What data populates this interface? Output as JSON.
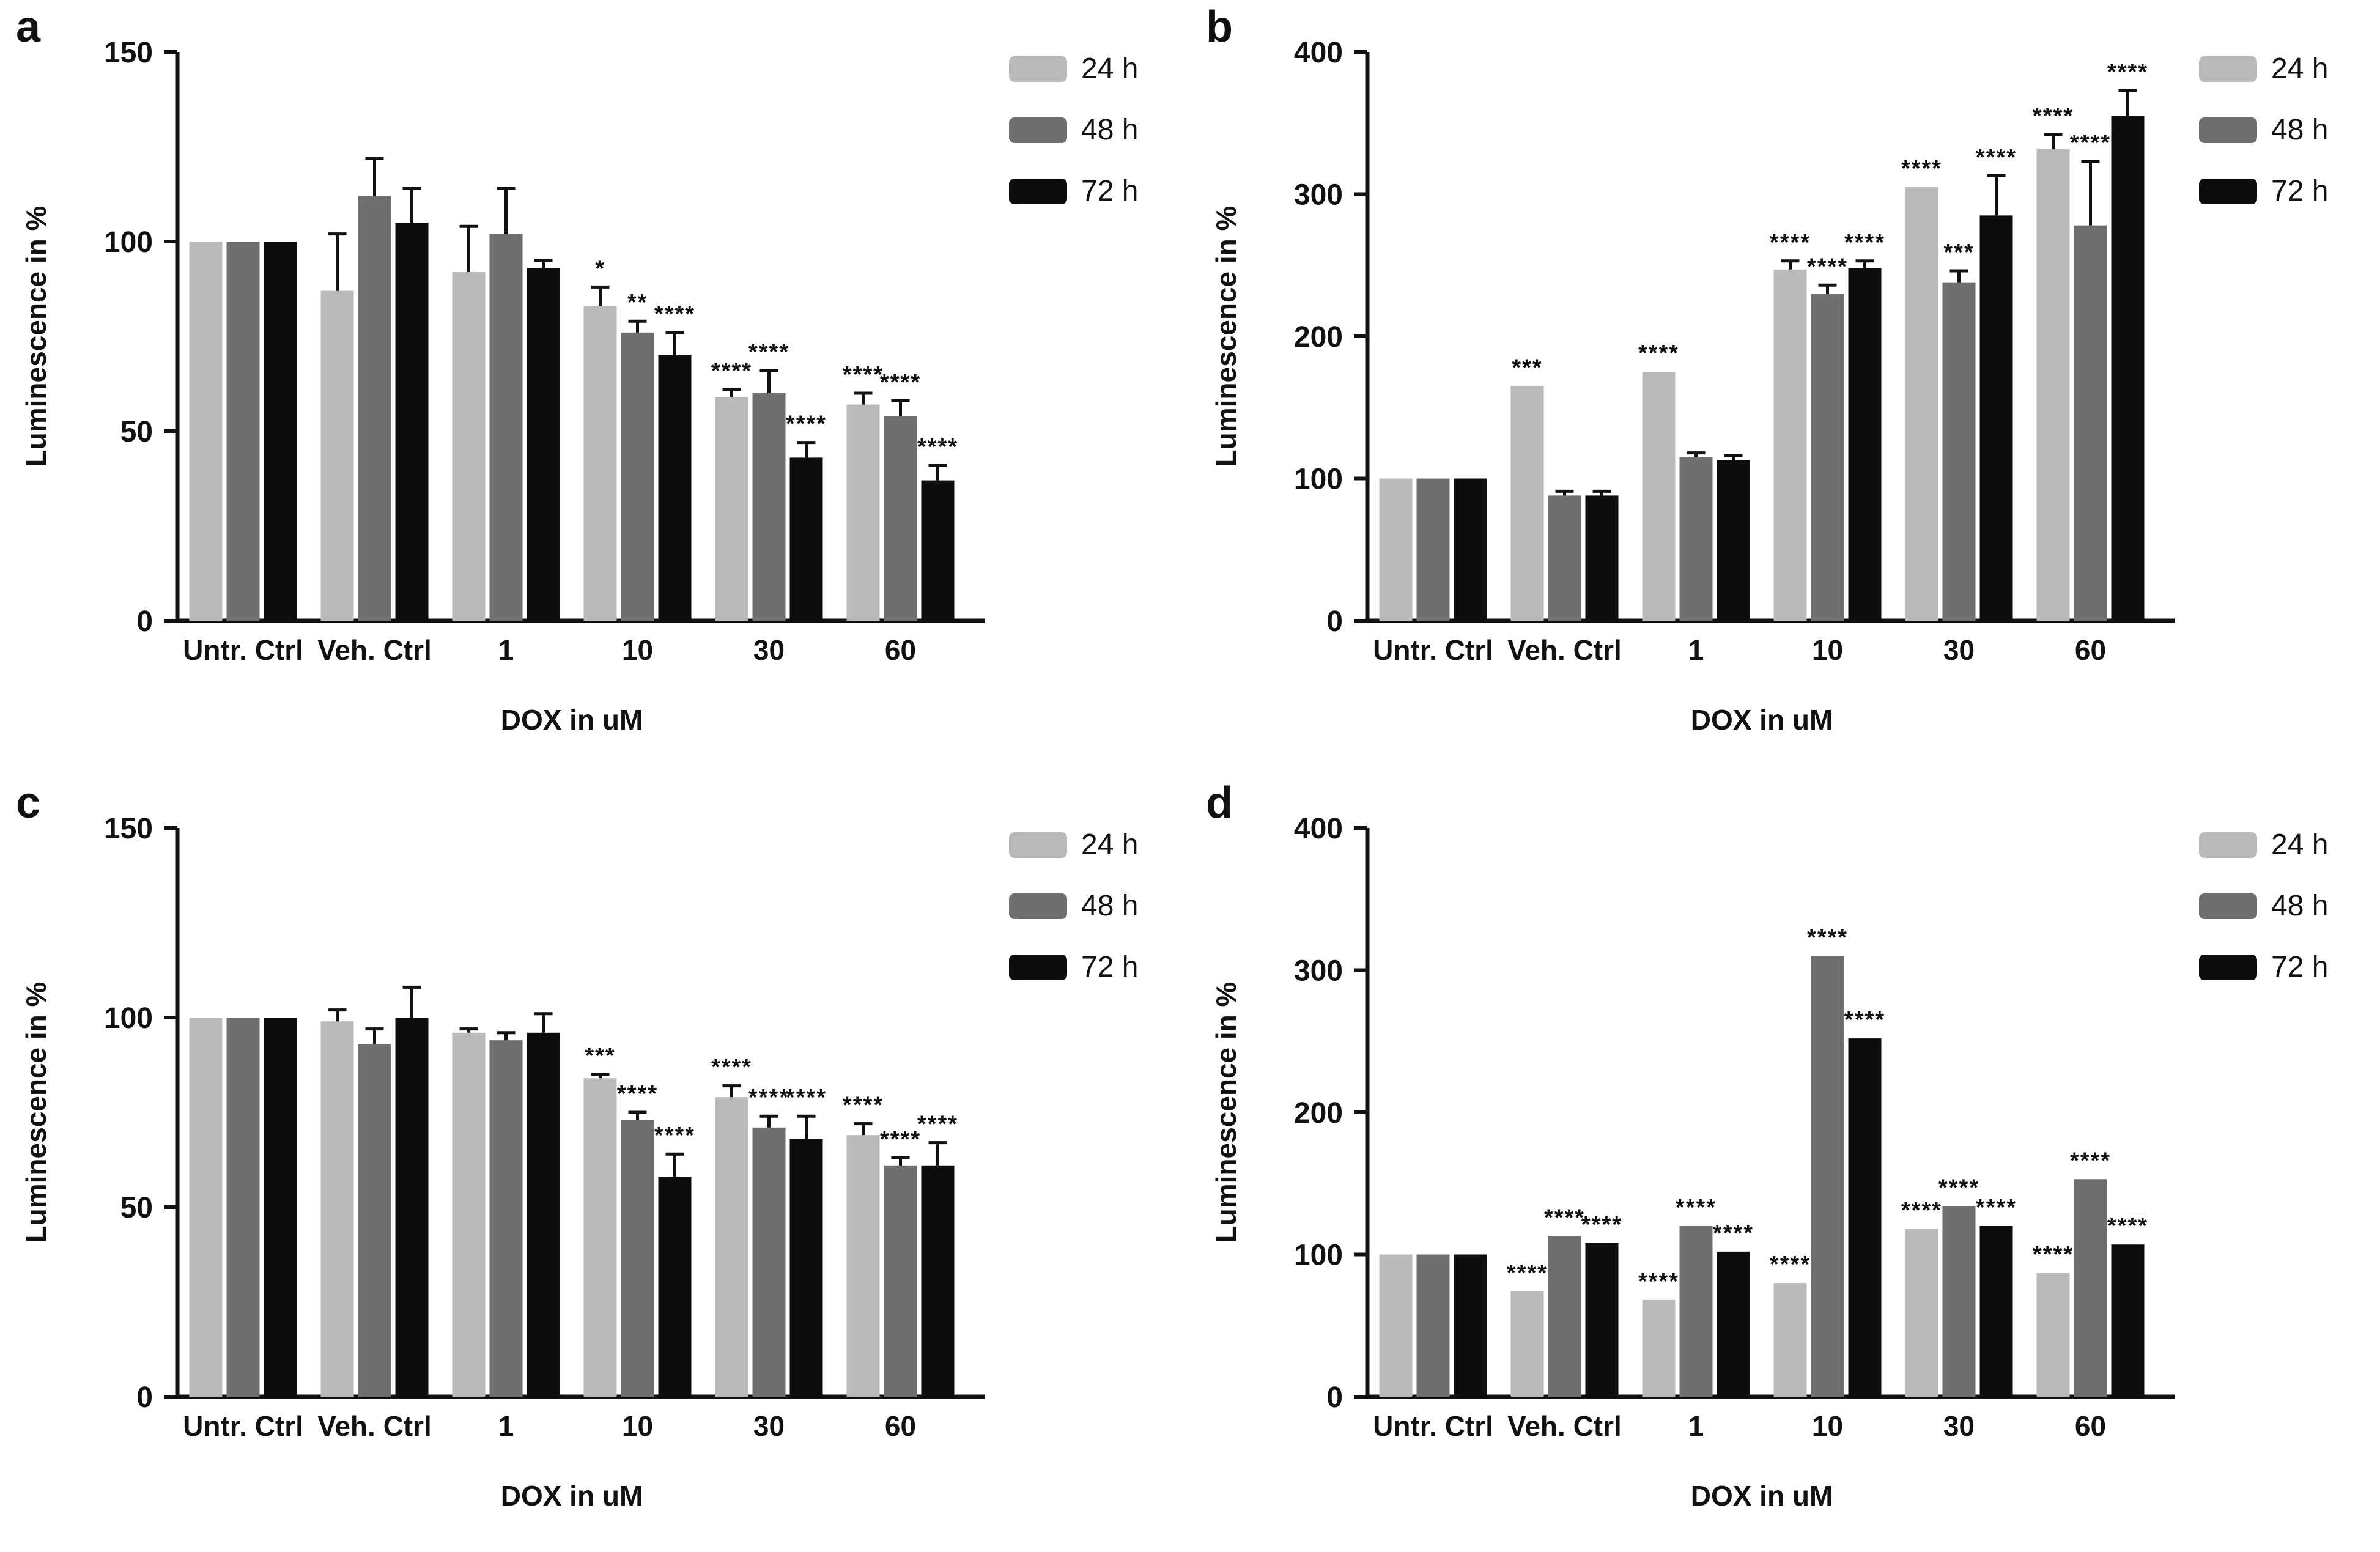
{
  "figure": {
    "background": "#ffffff",
    "axis_color": "#111111",
    "error_bar_color": "#111111",
    "significance_color": "#111111",
    "bar_colors": {
      "24 h": "#b9b9b9",
      "48 h": "#6f6f6f",
      "72 h": "#0d0d0d"
    }
  },
  "chart_data": [
    {
      "panel": "a",
      "type": "bar",
      "title": "",
      "xlabel": "DOX in uM",
      "ylabel": "Luminescence in %",
      "ylim": [
        0,
        150
      ],
      "yticks": [
        0,
        50,
        100,
        150
      ],
      "grid": false,
      "legend_position": "top-right",
      "categories": [
        "Untr. Ctrl",
        "Veh. Ctrl",
        "1",
        "10",
        "30",
        "60"
      ],
      "legend": [
        "24 h",
        "48 h",
        "72 h"
      ],
      "series": [
        {
          "name": "24 h",
          "color": "#b9b9b9",
          "values": [
            100,
            87,
            92,
            83,
            59,
            57
          ],
          "errors": [
            0,
            15,
            12,
            5,
            2,
            3
          ],
          "sig": [
            "",
            "",
            "",
            "*",
            "****",
            "****"
          ]
        },
        {
          "name": "48 h",
          "color": "#6f6f6f",
          "values": [
            100,
            112,
            102,
            76,
            60,
            54
          ],
          "errors": [
            0,
            10,
            12,
            3,
            6,
            4
          ],
          "sig": [
            "",
            "",
            "",
            "**",
            "****",
            "****"
          ]
        },
        {
          "name": "72 h",
          "color": "#0d0d0d",
          "values": [
            100,
            105,
            93,
            70,
            43,
            37
          ],
          "errors": [
            0,
            9,
            2,
            6,
            4,
            4
          ],
          "sig": [
            "",
            "",
            "",
            "****",
            "****",
            "****"
          ]
        }
      ]
    },
    {
      "panel": "b",
      "type": "bar",
      "title": "",
      "xlabel": "DOX in uM",
      "ylabel": "Luminescence in %",
      "ylim": [
        0,
        400
      ],
      "yticks": [
        0,
        100,
        200,
        300,
        400
      ],
      "grid": false,
      "legend_position": "top-right",
      "categories": [
        "Untr. Ctrl",
        "Veh. Ctrl",
        "1",
        "10",
        "30",
        "60"
      ],
      "legend": [
        "24 h",
        "48 h",
        "72 h"
      ],
      "series": [
        {
          "name": "24 h",
          "color": "#b9b9b9",
          "values": [
            100,
            165,
            175,
            247,
            305,
            332
          ],
          "errors": [
            0,
            0,
            0,
            6,
            0,
            10
          ],
          "sig": [
            "",
            "***",
            "****",
            "****",
            "****",
            "****"
          ]
        },
        {
          "name": "48 h",
          "color": "#6f6f6f",
          "values": [
            100,
            88,
            115,
            230,
            238,
            278
          ],
          "errors": [
            0,
            3,
            3,
            6,
            8,
            45
          ],
          "sig": [
            "",
            "",
            "",
            "****",
            "***",
            "****"
          ]
        },
        {
          "name": "72 h",
          "color": "#0d0d0d",
          "values": [
            100,
            88,
            113,
            248,
            285,
            355
          ],
          "errors": [
            0,
            3,
            3,
            5,
            28,
            18
          ],
          "sig": [
            "",
            "",
            "",
            "****",
            "****",
            "****"
          ]
        }
      ]
    },
    {
      "panel": "c",
      "type": "bar",
      "title": "",
      "xlabel": "DOX in uM",
      "ylabel": "Luminescence in %",
      "ylim": [
        0,
        150
      ],
      "yticks": [
        0,
        50,
        100,
        150
      ],
      "grid": false,
      "legend_position": "top-right",
      "categories": [
        "Untr. Ctrl",
        "Veh. Ctrl",
        "1",
        "10",
        "30",
        "60"
      ],
      "legend": [
        "24 h",
        "48 h",
        "72 h"
      ],
      "series": [
        {
          "name": "24 h",
          "color": "#b9b9b9",
          "values": [
            100,
            99,
            96,
            84,
            79,
            69
          ],
          "errors": [
            0,
            3,
            1,
            1,
            3,
            3
          ],
          "sig": [
            "",
            "",
            "",
            "***",
            "****",
            "****"
          ]
        },
        {
          "name": "48 h",
          "color": "#6f6f6f",
          "values": [
            100,
            93,
            94,
            73,
            71,
            61
          ],
          "errors": [
            0,
            4,
            2,
            2,
            3,
            2
          ],
          "sig": [
            "",
            "",
            "",
            "****",
            "****",
            "****"
          ]
        },
        {
          "name": "72 h",
          "color": "#0d0d0d",
          "values": [
            100,
            100,
            96,
            58,
            68,
            61
          ],
          "errors": [
            0,
            8,
            5,
            6,
            6,
            6
          ],
          "sig": [
            "",
            "",
            "",
            "****",
            "****",
            "****"
          ]
        }
      ]
    },
    {
      "panel": "d",
      "type": "bar",
      "title": "",
      "xlabel": "DOX in uM",
      "ylabel": "Luminescence in %",
      "ylim": [
        0,
        400
      ],
      "yticks": [
        0,
        100,
        200,
        300,
        400
      ],
      "grid": false,
      "legend_position": "top-right",
      "categories": [
        "Untr. Ctrl",
        "Veh. Ctrl",
        "1",
        "10",
        "30",
        "60"
      ],
      "legend": [
        "24 h",
        "48 h",
        "72 h"
      ],
      "series": [
        {
          "name": "24 h",
          "color": "#b9b9b9",
          "values": [
            100,
            74,
            68,
            80,
            118,
            87
          ],
          "errors": [
            0,
            0,
            0,
            0,
            0,
            0
          ],
          "sig": [
            "",
            "****",
            "****",
            "****",
            "****",
            "****"
          ]
        },
        {
          "name": "48 h",
          "color": "#6f6f6f",
          "values": [
            100,
            113,
            120,
            310,
            134,
            153
          ],
          "errors": [
            0,
            0,
            0,
            0,
            0,
            0
          ],
          "sig": [
            "",
            "****",
            "****",
            "****",
            "****",
            "****"
          ]
        },
        {
          "name": "72 h",
          "color": "#0d0d0d",
          "values": [
            100,
            108,
            102,
            252,
            120,
            107
          ],
          "errors": [
            0,
            0,
            0,
            0,
            0,
            0
          ],
          "sig": [
            "",
            "****",
            "****",
            "****",
            "****",
            "****"
          ]
        }
      ]
    }
  ]
}
